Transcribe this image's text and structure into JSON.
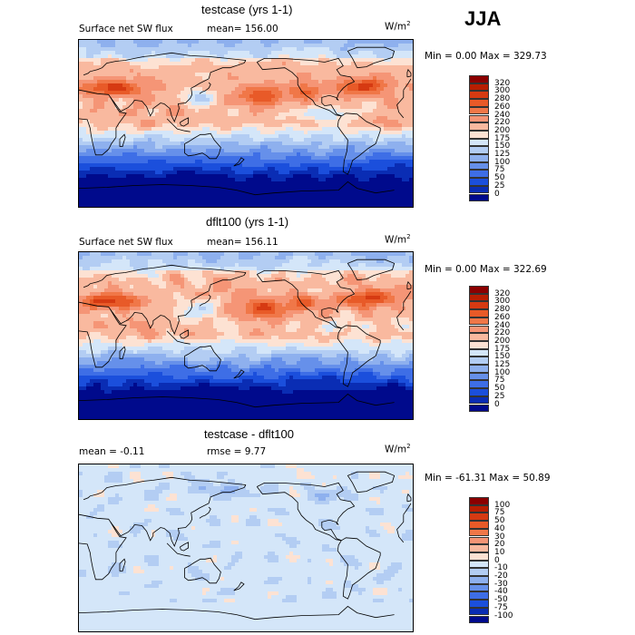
{
  "season": "JJA",
  "units": "W/m",
  "units_sup": "2",
  "panels": [
    {
      "title": "testcase (yrs 1-1)",
      "variable": "Surface net SW flux",
      "stat": "mean= 156.00",
      "minmax": "Min =    0.00 Max = 329.73",
      "levels": [
        "320",
        "300",
        "280",
        "260",
        "240",
        "220",
        "200",
        "175",
        "150",
        "125",
        "100",
        "75",
        "50",
        "25",
        "0"
      ],
      "colors": [
        "#8b0000",
        "#b81e00",
        "#d63a12",
        "#e85a28",
        "#f07748",
        "#f59576",
        "#f9b99f",
        "#fde2d3",
        "#d4e6f9",
        "#b3cdf3",
        "#8eb0ee",
        "#6690ea",
        "#3e6ee6",
        "#1b4fdc",
        "#0a2db4",
        "#000a8c"
      ],
      "kind": "sw",
      "seed": 11
    },
    {
      "title": "dflt100 (yrs 1-1)",
      "variable": "Surface net SW flux",
      "stat": "mean= 156.11",
      "minmax": "Min =    0.00 Max = 322.69",
      "levels": [
        "320",
        "300",
        "280",
        "260",
        "240",
        "220",
        "200",
        "175",
        "150",
        "125",
        "100",
        "75",
        "50",
        "25",
        "0"
      ],
      "colors": [
        "#8b0000",
        "#b81e00",
        "#d63a12",
        "#e85a28",
        "#f07748",
        "#f59576",
        "#f9b99f",
        "#fde2d3",
        "#d4e6f9",
        "#b3cdf3",
        "#8eb0ee",
        "#6690ea",
        "#3e6ee6",
        "#1b4fdc",
        "#0a2db4",
        "#000a8c"
      ],
      "kind": "sw",
      "seed": 23
    },
    {
      "title": "testcase - dflt100",
      "variable": "mean =  -0.11",
      "stat": "rmse =   9.77",
      "minmax": "Min = -61.31 Max =  50.89",
      "levels": [
        "100",
        "75",
        "50",
        "40",
        "30",
        "20",
        "10",
        "0",
        "-10",
        "-20",
        "-30",
        "-40",
        "-50",
        "-75",
        "-100"
      ],
      "colors": [
        "#8b0000",
        "#b81e00",
        "#d63a12",
        "#e85a28",
        "#f07748",
        "#f59576",
        "#f9b99f",
        "#fde2d3",
        "#d4e6f9",
        "#b3cdf3",
        "#8eb0ee",
        "#6690ea",
        "#3e6ee6",
        "#1b4fdc",
        "#0a2db4",
        "#000a8c"
      ],
      "kind": "diff",
      "seed": 37
    }
  ],
  "chart_data": [
    {
      "type": "heatmap",
      "title": "testcase (yrs 1-1)",
      "subtitle": "Surface net SW flux",
      "mean": 156.0,
      "min": 0.0,
      "max": 329.73,
      "units": "W/m2",
      "contour_levels": [
        0,
        25,
        50,
        75,
        100,
        125,
        150,
        175,
        200,
        220,
        240,
        260,
        280,
        300,
        320
      ]
    },
    {
      "type": "heatmap",
      "title": "dflt100 (yrs 1-1)",
      "subtitle": "Surface net SW flux",
      "mean": 156.11,
      "min": 0.0,
      "max": 322.69,
      "units": "W/m2",
      "contour_levels": [
        0,
        25,
        50,
        75,
        100,
        125,
        150,
        175,
        200,
        220,
        240,
        260,
        280,
        300,
        320
      ]
    },
    {
      "type": "heatmap",
      "title": "testcase - dflt100",
      "mean": -0.11,
      "rmse": 9.77,
      "min": -61.31,
      "max": 50.89,
      "units": "W/m2",
      "contour_levels": [
        -100,
        -75,
        -50,
        -40,
        -30,
        -20,
        -10,
        0,
        10,
        20,
        30,
        40,
        50,
        75,
        100
      ]
    }
  ]
}
